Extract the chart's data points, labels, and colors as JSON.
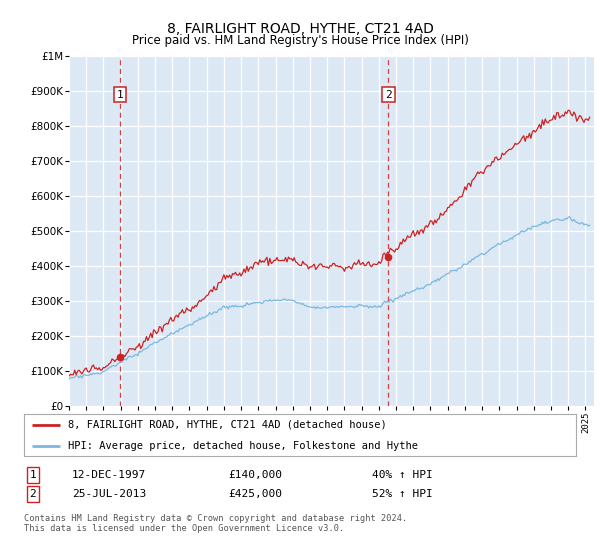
{
  "title": "8, FAIRLIGHT ROAD, HYTHE, CT21 4AD",
  "subtitle": "Price paid vs. HM Land Registry's House Price Index (HPI)",
  "sale1_date": 1997.95,
  "sale1_price": 140000,
  "sale2_date": 2013.56,
  "sale2_price": 425000,
  "hpi_color": "#7bb8e0",
  "price_color": "#cc2222",
  "vline_color": "#cc2222",
  "bg_color": "#dce9f5",
  "legend_line1": "8, FAIRLIGHT ROAD, HYTHE, CT21 4AD (detached house)",
  "legend_line2": "HPI: Average price, detached house, Folkestone and Hythe",
  "footer": "Contains HM Land Registry data © Crown copyright and database right 2024.\nThis data is licensed under the Open Government Licence v3.0.",
  "ylim": [
    0,
    1000000
  ],
  "xlim_start": 1995.0,
  "xlim_end": 2025.5,
  "hpi_seed": 10,
  "price_seed": 99
}
